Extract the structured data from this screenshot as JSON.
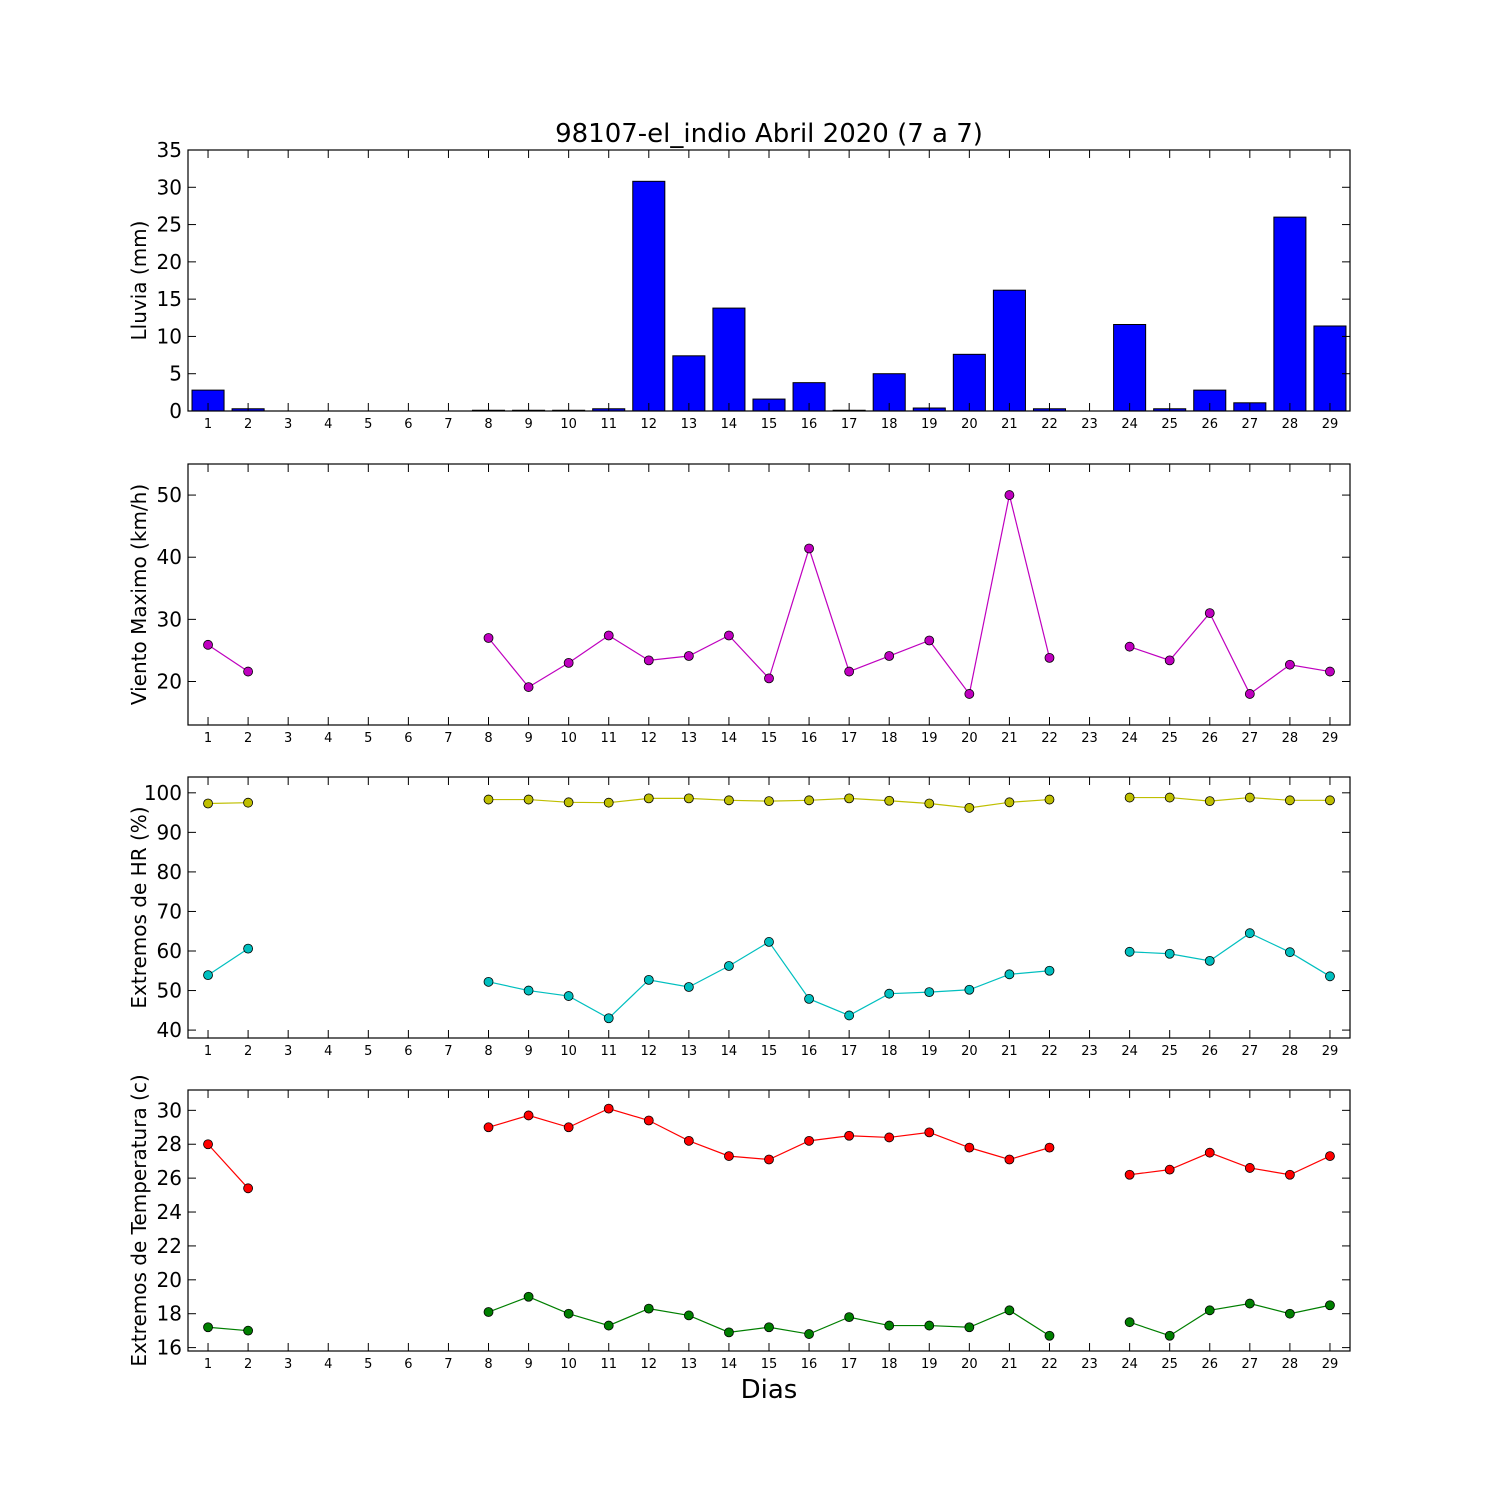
{
  "chart_data": [
    {
      "type": "bar",
      "title": "98107-el_indio Abril 2020  (7 a 7)",
      "ylabel": "Lluvia (mm)",
      "ylim": [
        0,
        35
      ],
      "yticks": [
        0,
        5,
        10,
        15,
        20,
        25,
        30,
        35
      ],
      "categories": [
        1,
        2,
        3,
        4,
        5,
        6,
        7,
        8,
        9,
        10,
        11,
        12,
        13,
        14,
        15,
        16,
        17,
        18,
        19,
        20,
        21,
        22,
        23,
        24,
        25,
        26,
        27,
        28,
        29
      ],
      "colors": [
        "#0000ff"
      ],
      "series": [
        {
          "values": [
            2.8,
            0.3,
            0,
            0,
            0,
            0,
            0,
            0.1,
            0.1,
            0.1,
            0.3,
            30.8,
            7.4,
            13.8,
            1.6,
            3.8,
            0.1,
            5.0,
            0.4,
            7.6,
            16.2,
            0.3,
            0,
            11.6,
            0.3,
            2.8,
            1.1,
            26.0,
            11.4
          ]
        }
      ]
    },
    {
      "type": "line",
      "ylabel": "Viento Maximo (km/h)",
      "ylim": [
        13,
        55
      ],
      "yticks": [
        20,
        30,
        40,
        50
      ],
      "categories": [
        1,
        2,
        3,
        4,
        5,
        6,
        7,
        8,
        9,
        10,
        11,
        12,
        13,
        14,
        15,
        16,
        17,
        18,
        19,
        20,
        21,
        22,
        23,
        24,
        25,
        26,
        27,
        28,
        29
      ],
      "colors": [
        "#bf00bf"
      ],
      "series": [
        {
          "values": [
            25.9,
            21.6,
            null,
            null,
            null,
            null,
            null,
            27.0,
            19.1,
            23.0,
            27.4,
            23.4,
            24.1,
            27.4,
            20.5,
            41.4,
            21.6,
            24.1,
            26.6,
            18.0,
            50.0,
            23.8,
            null,
            25.6,
            23.4,
            31.0,
            18.0,
            22.7,
            21.6
          ]
        }
      ]
    },
    {
      "type": "line",
      "ylabel": "Extremos de HR (%)",
      "ylim": [
        38,
        104
      ],
      "yticks": [
        40,
        50,
        60,
        70,
        80,
        90,
        100
      ],
      "categories": [
        1,
        2,
        3,
        4,
        5,
        6,
        7,
        8,
        9,
        10,
        11,
        12,
        13,
        14,
        15,
        16,
        17,
        18,
        19,
        20,
        21,
        22,
        23,
        24,
        25,
        26,
        27,
        28,
        29
      ],
      "colors": [
        "#bfbf00",
        "#00bfbf"
      ],
      "series": [
        {
          "values": [
            97.3,
            97.5,
            null,
            null,
            null,
            null,
            null,
            98.3,
            98.3,
            97.6,
            97.5,
            98.6,
            98.6,
            98.1,
            97.9,
            98.1,
            98.6,
            98.0,
            97.3,
            96.2,
            97.6,
            98.3,
            null,
            98.8,
            98.8,
            97.9,
            98.8,
            98.1,
            98.1
          ]
        },
        {
          "values": [
            53.9,
            60.6,
            null,
            null,
            null,
            null,
            null,
            52.2,
            50.0,
            48.6,
            43.0,
            52.7,
            50.9,
            56.2,
            62.3,
            47.9,
            43.7,
            49.2,
            49.6,
            50.2,
            54.1,
            55.0,
            null,
            59.8,
            59.3,
            57.5,
            64.5,
            59.7,
            53.6
          ]
        }
      ]
    },
    {
      "type": "line",
      "ylabel": "Extremos de Temperatura (c)",
      "xlabel": "Dias",
      "ylim": [
        15.8,
        31.2
      ],
      "yticks": [
        16,
        18,
        20,
        22,
        24,
        26,
        28,
        30
      ],
      "categories": [
        1,
        2,
        3,
        4,
        5,
        6,
        7,
        8,
        9,
        10,
        11,
        12,
        13,
        14,
        15,
        16,
        17,
        18,
        19,
        20,
        21,
        22,
        23,
        24,
        25,
        26,
        27,
        28,
        29
      ],
      "colors": [
        "#ff0000",
        "#007f00"
      ],
      "series": [
        {
          "values": [
            28.0,
            25.4,
            null,
            null,
            null,
            null,
            null,
            29.0,
            29.7,
            29.0,
            30.1,
            29.4,
            28.2,
            27.3,
            27.1,
            28.2,
            28.5,
            28.4,
            28.7,
            27.8,
            27.1,
            27.8,
            null,
            26.2,
            26.5,
            27.5,
            26.6,
            26.2,
            27.3
          ]
        },
        {
          "values": [
            17.2,
            17.0,
            null,
            null,
            null,
            null,
            null,
            18.1,
            19.0,
            18.0,
            17.3,
            18.3,
            17.9,
            16.9,
            17.2,
            16.8,
            17.8,
            17.3,
            17.3,
            17.2,
            18.2,
            16.7,
            null,
            17.5,
            16.7,
            18.2,
            18.6,
            18.0,
            18.5
          ]
        }
      ]
    }
  ]
}
